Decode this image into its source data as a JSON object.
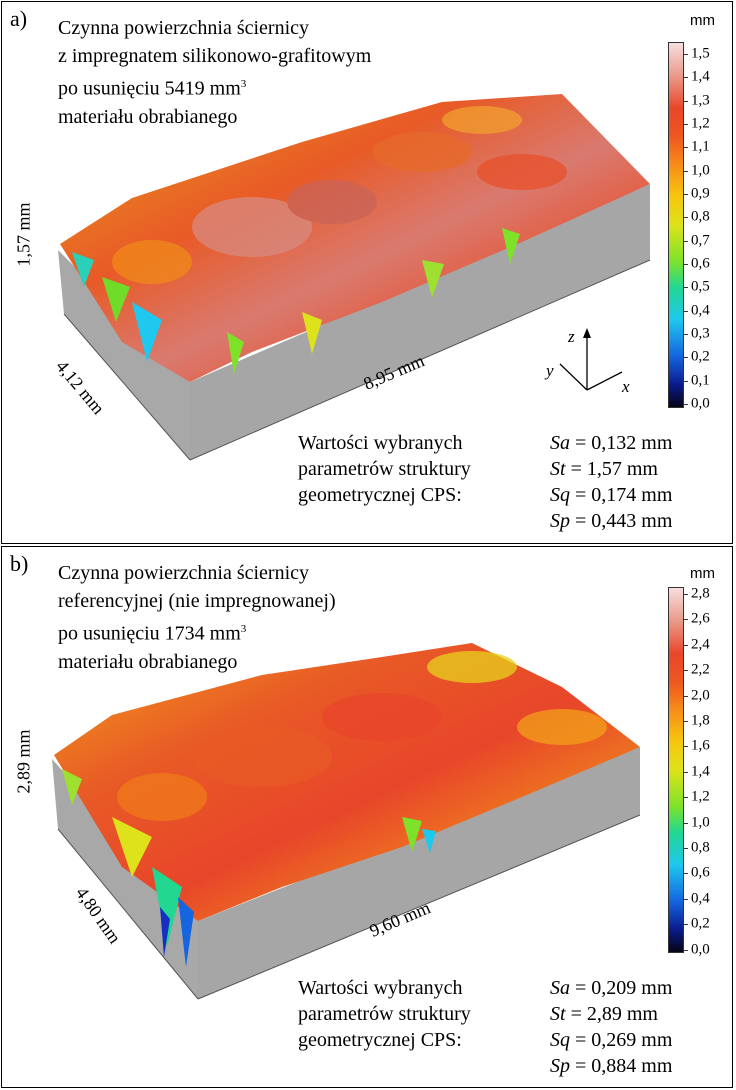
{
  "panels": [
    {
      "label": "a)",
      "title_lines": [
        "Czynna powierzchnia ściernicy",
        "z impregnatem silikonowo-grafitowym",
        "po usunięciu 5419 mm",
        "materiału obrabianego"
      ],
      "title_sup": "3",
      "colorbar_unit": "mm",
      "colorbar_ticks": [
        "1,5",
        "1,4",
        "1,3",
        "1,2",
        "1,1",
        "1,0",
        "0,9",
        "0,8",
        "0,7",
        "0,6",
        "0,5",
        "0,4",
        "0,3",
        "0,2",
        "0,1",
        "0,0"
      ],
      "dim_height": "1,57 mm",
      "dim_depth": "4,12 mm",
      "dim_length": "8,95 mm",
      "axes": {
        "z": "z",
        "y": "y",
        "x": "x"
      },
      "params_label": [
        "Wartości wybranych",
        "parametrów struktury",
        "geometrycznej CPS:"
      ],
      "params": [
        {
          "name": "Sa",
          "value": "= 0,132 mm"
        },
        {
          "name": "St",
          "value": "= 1,57 mm"
        },
        {
          "name": "Sq",
          "value": "= 0,174 mm"
        },
        {
          "name": "Sp",
          "value": "=  0,443 mm"
        }
      ]
    },
    {
      "label": "b)",
      "title_lines": [
        "Czynna powierzchnia ściernicy",
        "referencyjnej (nie impregnowanej)",
        "po usunięciu 1734 mm",
        "materiału obrabianego"
      ],
      "title_sup": "3",
      "colorbar_unit": "mm",
      "colorbar_ticks": [
        "2,8",
        "2,6",
        "2,4",
        "2,2",
        "2,0",
        "1,8",
        "1,6",
        "1,4",
        "1,2",
        "1,0",
        "0,8",
        "0,6",
        "0,4",
        "0,2",
        "0,0"
      ],
      "dim_height": "2,89 mm",
      "dim_depth": "4,80 mm",
      "dim_length": "9,60 mm",
      "params_label": [
        "Wartości wybranych",
        "parametrów struktury",
        "geometrycznej CPS:"
      ],
      "params": [
        {
          "name": "Sa",
          "value": "= 0,209 mm"
        },
        {
          "name": "St",
          "value": "= 2,89 mm"
        },
        {
          "name": "Sq",
          "value": "= 0,269 mm"
        },
        {
          "name": "Sp",
          "value": "= 0,884 mm"
        }
      ]
    }
  ]
}
